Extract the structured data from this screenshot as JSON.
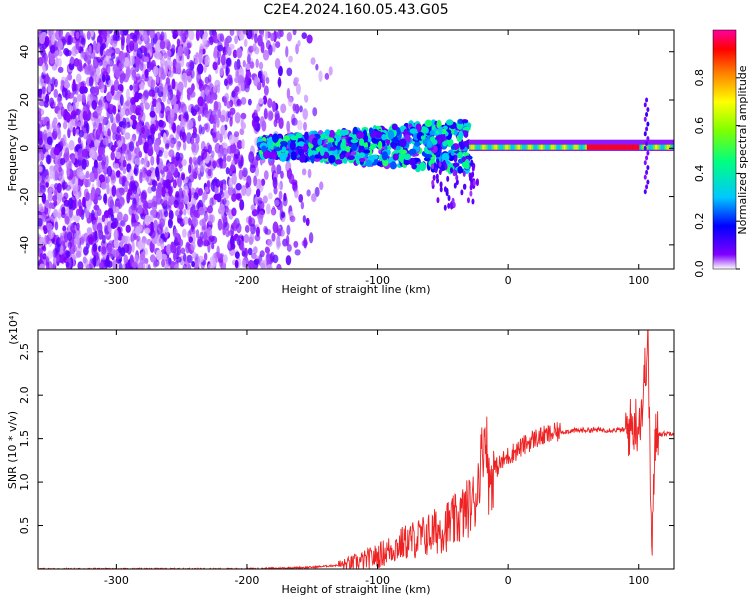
{
  "title": "C2E4.2024.160.05.43.G05",
  "chart_data": [
    {
      "type": "heatmap",
      "xlabel": "Height of straight line (km)",
      "ylabel": "Frequency (Hz)",
      "xlim": [
        -360,
        127
      ],
      "ylim": [
        -50,
        49
      ],
      "xticks": [
        -300,
        -200,
        -100,
        0,
        100
      ],
      "yticks": [
        -40,
        -20,
        0,
        20,
        40
      ],
      "colorbar": {
        "label": "Normalized spectral amplitude",
        "range": [
          0,
          1
        ],
        "ticks": [
          0.0,
          0.2,
          0.4,
          0.6,
          0.8
        ],
        "colormap": [
          "#ffffff",
          "#8000ff",
          "#0000ff",
          "#00c8ff",
          "#00ff80",
          "#80ff00",
          "#ffff00",
          "#ff8000",
          "#ff0000",
          "#ff00a0"
        ]
      },
      "features": [
        {
          "x_range": [
            -360,
            -135
          ],
          "freq_range": [
            -50,
            49
          ],
          "amplitude": 0.1
        },
        {
          "x_range": [
            -190,
            -30
          ],
          "freq_range": [
            -8,
            10
          ],
          "amplitude": 0.4
        },
        {
          "x_range": [
            -30,
            127
          ],
          "freq_range": [
            -2,
            2
          ],
          "amplitude": 0.55
        },
        {
          "x_range": [
            60,
            100
          ],
          "freq_range": [
            -1,
            1
          ],
          "amplitude": 0.9
        }
      ]
    },
    {
      "type": "line",
      "xlabel": "Height of straight line (km)",
      "ylabel": "SNR (10 * v/v)",
      "y_multiplier": "(x10⁴)",
      "xlim": [
        -360,
        127
      ],
      "ylim": [
        0,
        2.75
      ],
      "xticks": [
        -300,
        -200,
        -100,
        0,
        100
      ],
      "yticks": [
        0.5,
        1.0,
        1.5,
        2.0,
        2.5
      ],
      "ytick_labels": [
        "0.5",
        "1.0",
        "1.5",
        "2.0",
        "2.5"
      ],
      "line_color": "#ee2222",
      "x": [
        -360,
        -300,
        -200,
        -150,
        -125,
        -110,
        -100,
        -80,
        -60,
        -40,
        -25,
        -17,
        -15,
        -10,
        0,
        20,
        40,
        60,
        80,
        90,
        100,
        103,
        107,
        110,
        113,
        117,
        127
      ],
      "y": [
        0.0,
        0.0,
        0.0,
        0.02,
        0.05,
        0.1,
        0.15,
        0.3,
        0.4,
        0.55,
        0.8,
        1.65,
        1.0,
        1.15,
        1.3,
        1.5,
        1.58,
        1.6,
        1.6,
        1.6,
        1.7,
        1.9,
        2.7,
        0.15,
        1.6,
        1.55,
        1.57
      ]
    }
  ]
}
